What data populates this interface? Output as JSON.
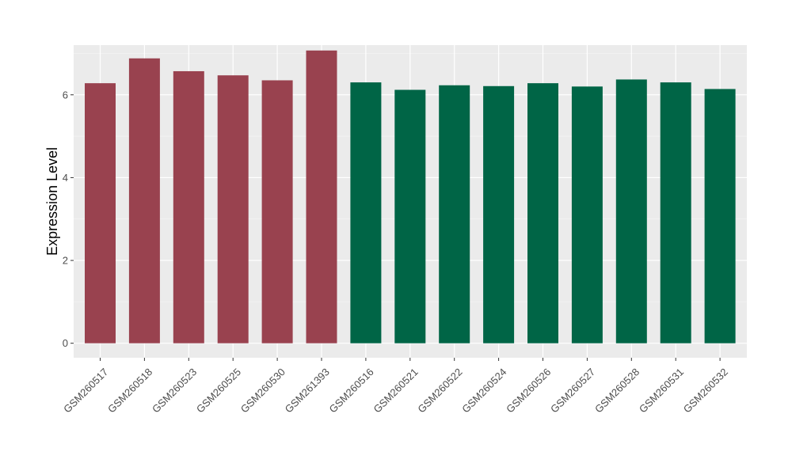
{
  "chart_data": {
    "type": "bar",
    "title": "",
    "xlabel": "",
    "ylabel": "Expression Level",
    "ylim": [
      -0.35,
      7.2
    ],
    "yticks": [
      0,
      2,
      4,
      6
    ],
    "grid": true,
    "legend": "none",
    "colors": {
      "group_a": "#99424f",
      "group_b": "#006546",
      "panel_background": "#ebebeb",
      "grid_major": "#ffffff",
      "grid_minor": "#f7f7f7"
    },
    "categories": [
      "GSM260517",
      "GSM260518",
      "GSM260523",
      "GSM260525",
      "GSM260530",
      "GSM261393",
      "GSM260516",
      "GSM260521",
      "GSM260522",
      "GSM260524",
      "GSM260526",
      "GSM260527",
      "GSM260528",
      "GSM260531",
      "GSM260532"
    ],
    "values": [
      6.28,
      6.88,
      6.57,
      6.47,
      6.35,
      7.07,
      6.3,
      6.12,
      6.23,
      6.21,
      6.28,
      6.2,
      6.37,
      6.3,
      6.14
    ],
    "bar_groups": [
      "group_a",
      "group_a",
      "group_a",
      "group_a",
      "group_a",
      "group_a",
      "group_b",
      "group_b",
      "group_b",
      "group_b",
      "group_b",
      "group_b",
      "group_b",
      "group_b",
      "group_b"
    ]
  }
}
